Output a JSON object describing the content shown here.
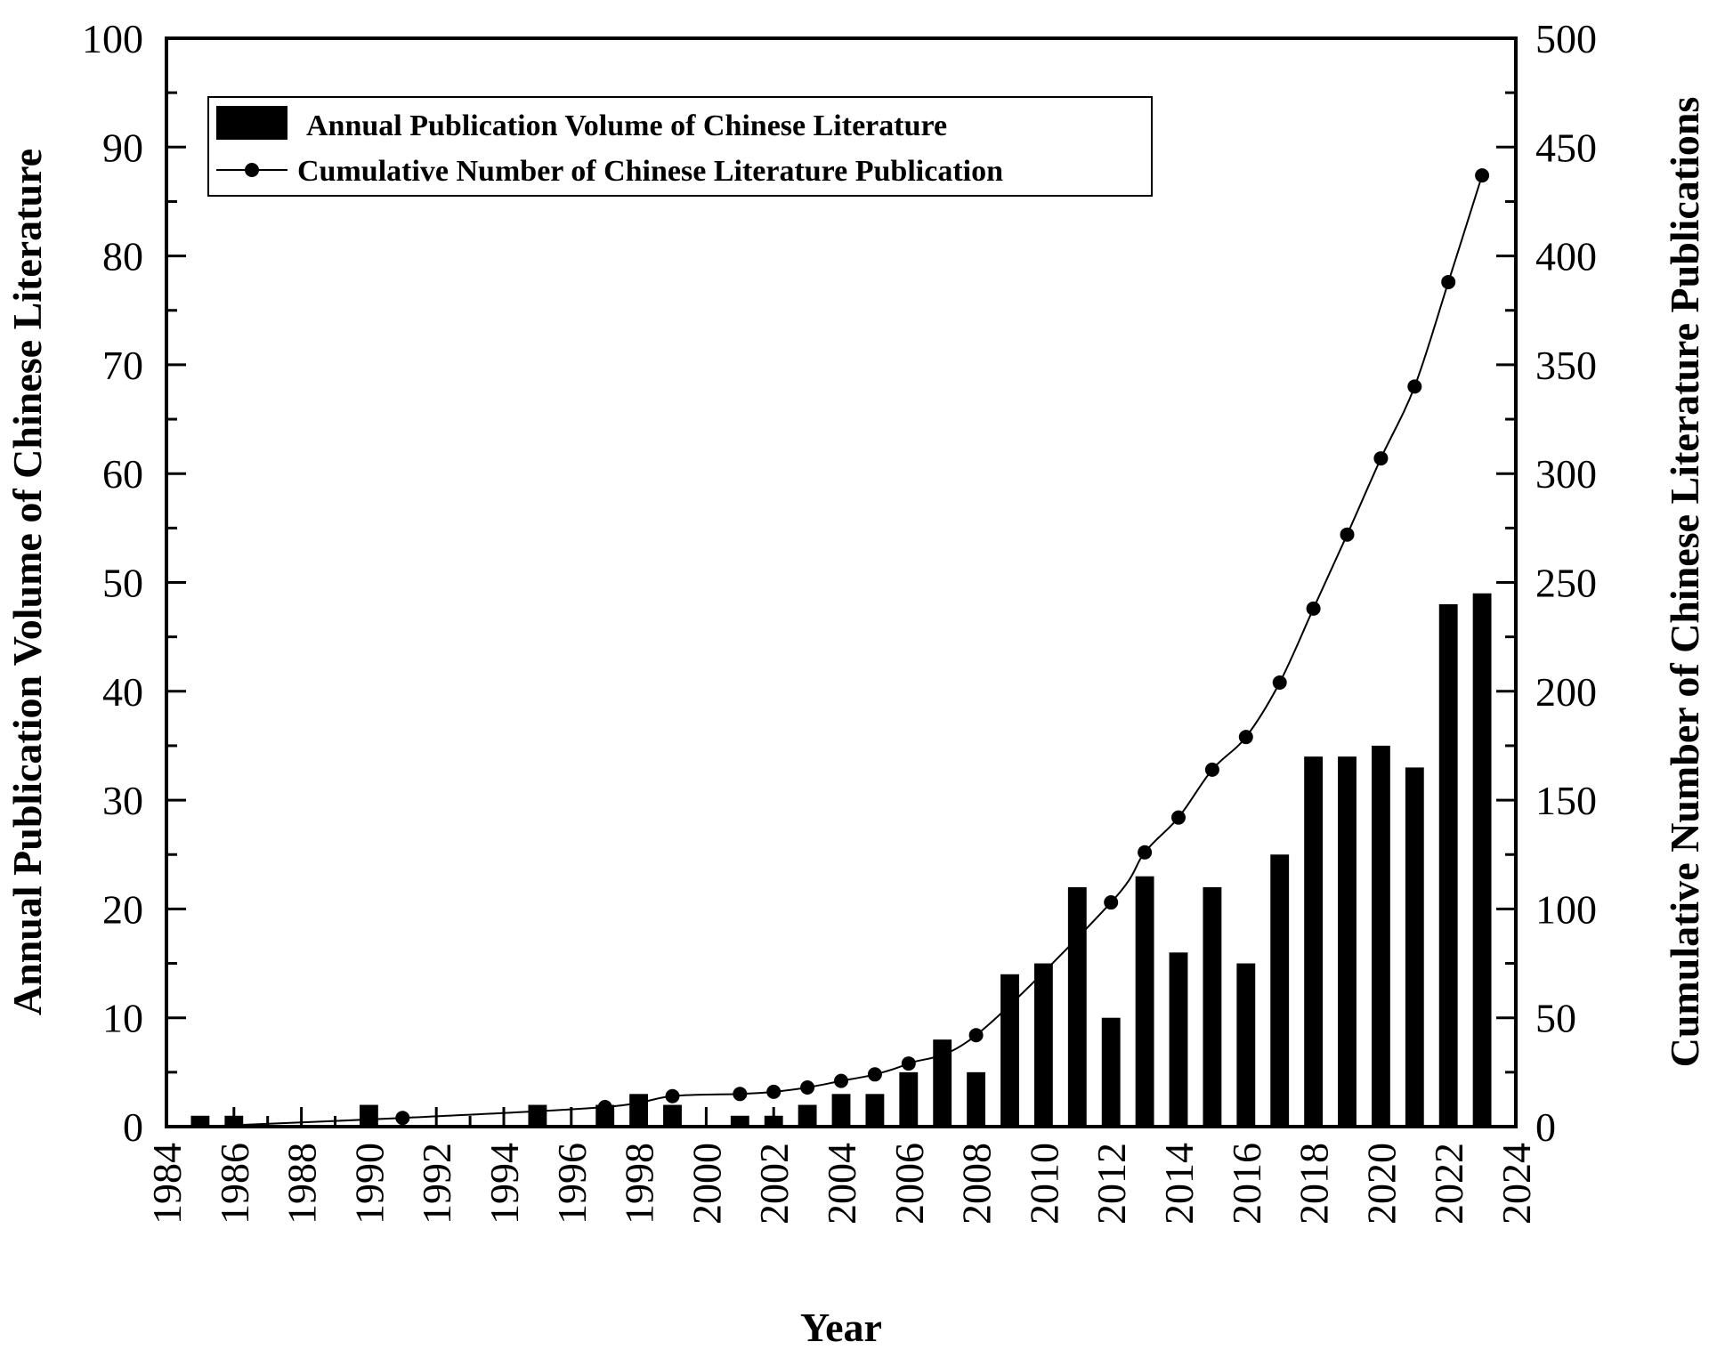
{
  "chart_data": {
    "type": "bar",
    "xlabel": "Year",
    "x_ticks": [
      1984,
      1986,
      1988,
      1990,
      1992,
      1994,
      1996,
      1998,
      2000,
      2002,
      2004,
      2006,
      2008,
      2010,
      2012,
      2014,
      2016,
      2018,
      2020,
      2022,
      2024
    ],
    "xlim": [
      1984,
      2024
    ],
    "y_left": {
      "label": "Annual Publication Volume of Chinese Literature",
      "range": [
        0,
        100
      ],
      "ticks": [
        0,
        10,
        20,
        30,
        40,
        50,
        60,
        70,
        80,
        90,
        100
      ]
    },
    "y_right": {
      "label": "Cumulative Number of Chinese Literature Publications",
      "range": [
        0,
        500
      ],
      "ticks": [
        0,
        50,
        100,
        150,
        200,
        250,
        300,
        350,
        400,
        450,
        500
      ]
    },
    "legend_position": "top-left",
    "series": [
      {
        "name": "Annual Publication Volume of Chinese Literature",
        "type": "bar",
        "axis": "left",
        "color": "#000000",
        "x": [
          1985,
          1986,
          1990,
          1995,
          1997,
          1998,
          1999,
          2001,
          2002,
          2003,
          2004,
          2005,
          2006,
          2007,
          2008,
          2009,
          2010,
          2011,
          2012,
          2013,
          2014,
          2015,
          2016,
          2017,
          2018,
          2019,
          2020,
          2021,
          2022,
          2023
        ],
        "values": [
          1,
          1,
          2,
          2,
          2,
          3,
          2,
          1,
          1,
          2,
          3,
          3,
          5,
          8,
          5,
          14,
          15,
          22,
          10,
          23,
          16,
          22,
          15,
          25,
          34,
          34,
          35,
          33,
          48,
          49
        ]
      },
      {
        "name": "Cumulative Number of Chinese Literature Publication",
        "type": "line",
        "axis": "right",
        "color": "#000000",
        "x": [
          1991,
          1997,
          1999,
          2001,
          2002,
          2003,
          2004,
          2005,
          2006,
          2008,
          2012,
          2013,
          2014,
          2015,
          2016,
          2017,
          2018,
          2019,
          2020,
          2021,
          2022,
          2023
        ],
        "values": [
          4,
          9,
          14,
          15,
          16,
          18,
          21,
          24,
          29,
          42,
          103,
          126,
          142,
          164,
          179,
          204,
          238,
          272,
          307,
          340,
          388,
          437
        ]
      }
    ]
  }
}
